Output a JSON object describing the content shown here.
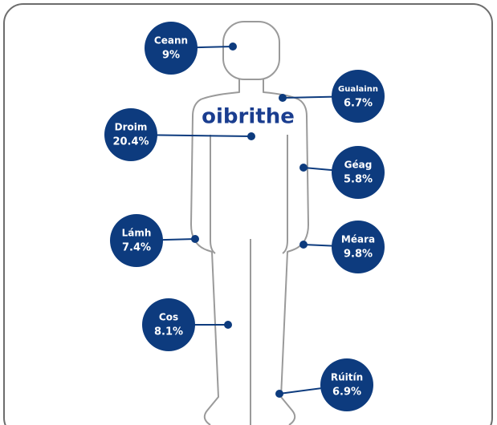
{
  "logo": "oibrithe",
  "nodes": [
    {
      "label": "Ceann",
      "value": "9%"
    },
    {
      "label": "Gualainn",
      "value": "6.7%"
    },
    {
      "label": "Droim",
      "value": "20.4%"
    },
    {
      "label": "Géag",
      "value": "5.8%"
    },
    {
      "label": "Lámh",
      "value": "7.4%"
    },
    {
      "label": "Méara",
      "value": "9.8%"
    },
    {
      "label": "Cos",
      "value": "8.1%"
    },
    {
      "label": "Rúitín",
      "value": "6.9%"
    }
  ]
}
